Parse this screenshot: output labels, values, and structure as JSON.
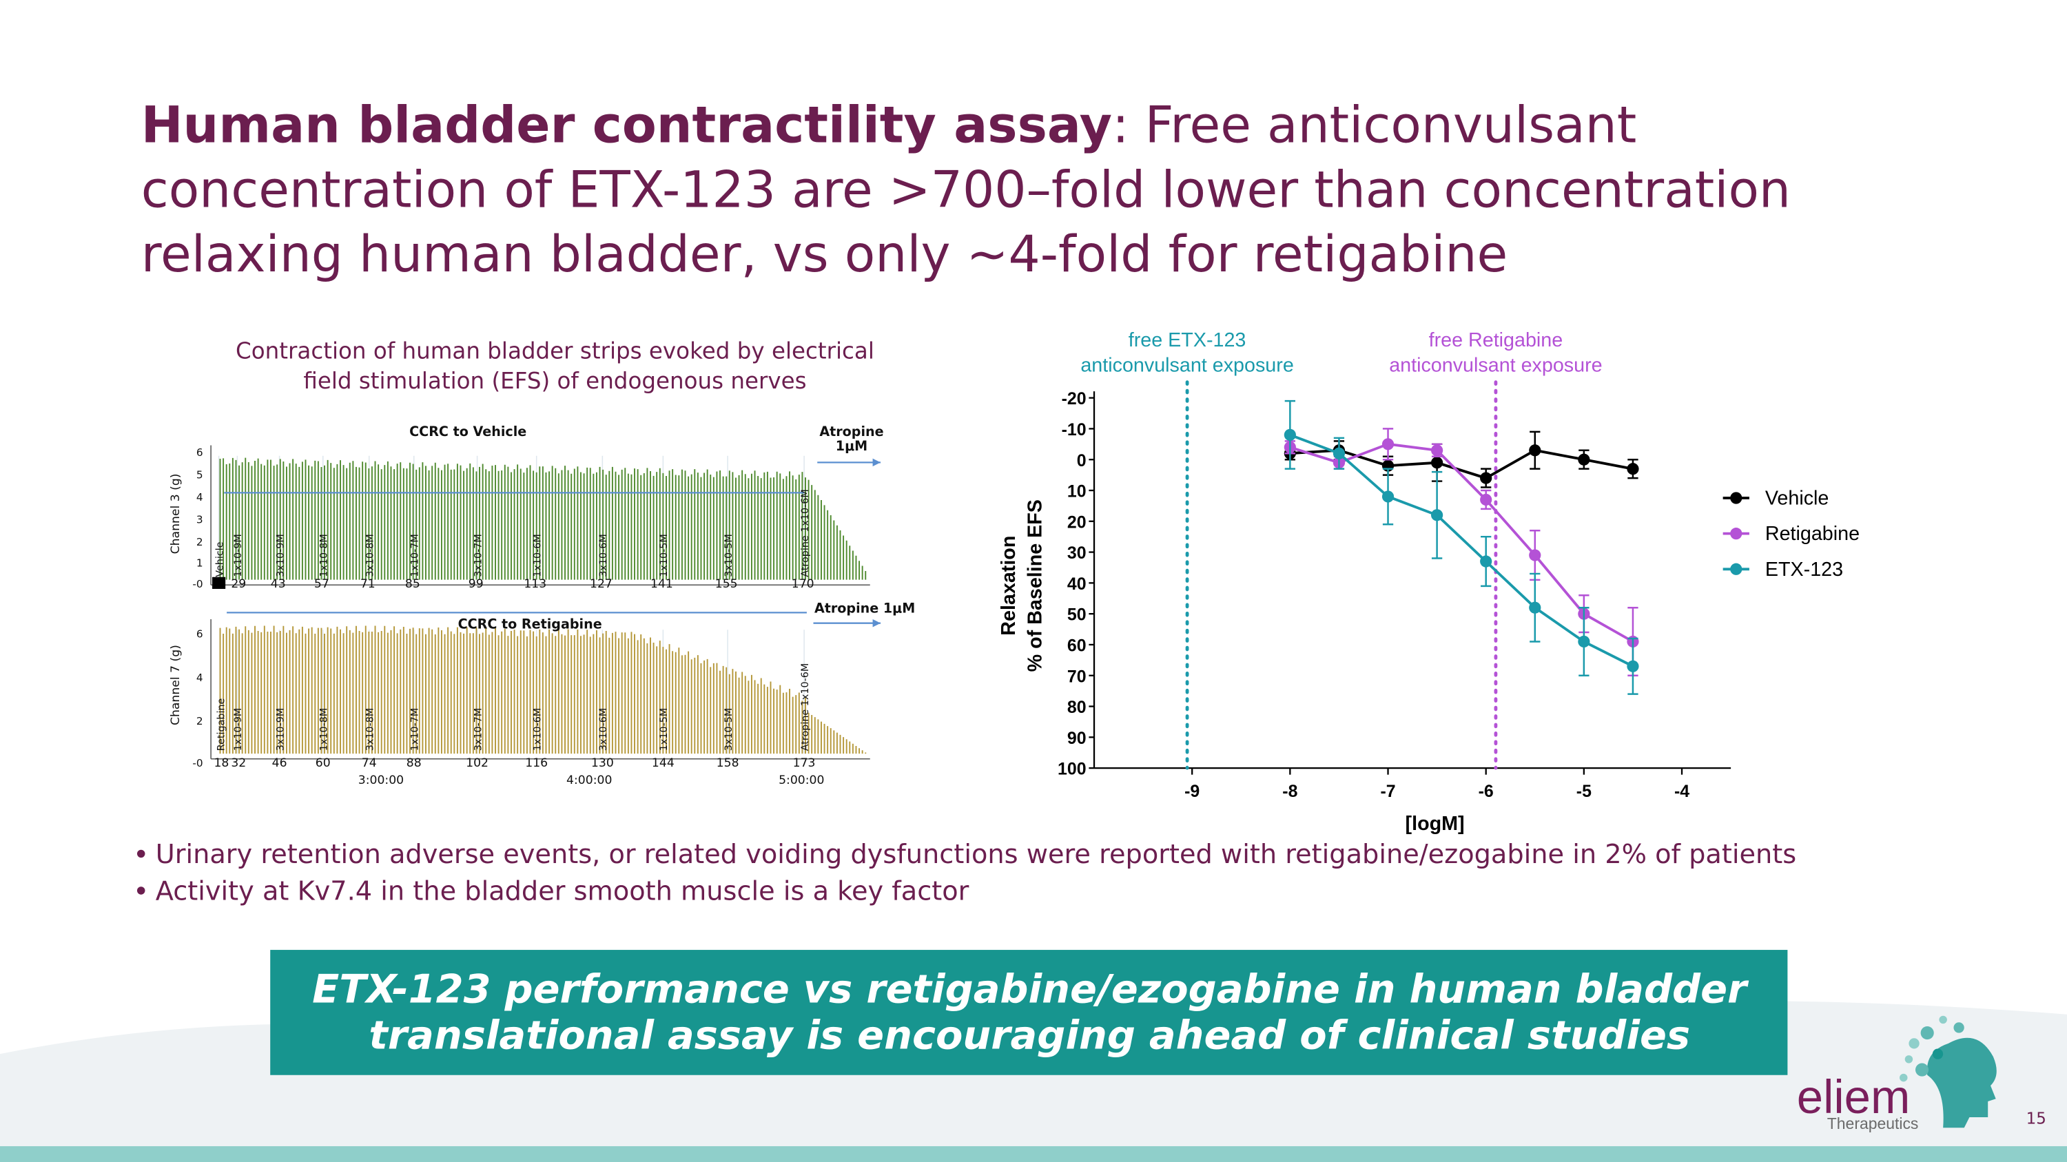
{
  "slide": {
    "title": {
      "bold": "Human bladder contractility assay",
      "rest": [
        ": Free anticonvulsant",
        "concentration of ETX-123 are >700–fold lower than concentration",
        "relaxing human bladder, vs only ~4-fold for retigabine"
      ]
    },
    "bullets": [
      "Urinary retention adverse events, or related voiding dysfunctions were reported with retigabine/ezogabine in 2% of patients",
      "Activity at Kv7.4 in the bladder smooth muscle is a key factor"
    ],
    "banner": [
      "ETX-123 performance vs retigabine/ezogabine in human bladder",
      "translational assay is encouraging ahead of clinical studies"
    ],
    "logo": {
      "name": "eliem",
      "tagline": "Therapeutics"
    },
    "page_number": "15"
  },
  "traces": {
    "caption": [
      "Contraction of human bladder strips evoked by electrical",
      "field stimulation (EFS) of endogenous nerves"
    ],
    "panels": [
      {
        "title": "CCRC to Vehicle",
        "end_label": [
          "Atropine",
          "1μM"
        ],
        "y_label": "Channel 3 (g)",
        "yticks": [
          "6",
          "5",
          "4",
          "3",
          "2",
          "1",
          "-0"
        ],
        "sweeps": [
          "29",
          "43",
          "57",
          "71",
          "85",
          "99",
          "113",
          "127",
          "141",
          "155",
          "170"
        ],
        "doses": [
          "Vehicle",
          "1x10-9M",
          "3x10-9M",
          "1x10-8M",
          "3x10-8M",
          "1x10-7M",
          "3x10-7M",
          "1x10-6M",
          "3x10-6M",
          "1x10-5M",
          "3x10-5M",
          "Atropine 1x10-6M"
        ]
      },
      {
        "title": "CCRC to Retigabine",
        "end_label": [
          "Atropine 1μM"
        ],
        "y_label": "Channel 7 (g)",
        "yticks": [
          "6",
          "4",
          "2",
          "-0"
        ],
        "sweeps": [
          "18",
          "32",
          "46",
          "60",
          "74",
          "88",
          "102",
          "116",
          "130",
          "144",
          "158",
          "173"
        ],
        "doses": [
          "Retigabine",
          "1x10-9M",
          "3x10-9M",
          "1x10-8M",
          "3x10-8M",
          "1x10-7M",
          "3x10-7M",
          "1x10-6M",
          "3x10-6M",
          "1x10-5M",
          "3x10-5M",
          "Atropine 1x10-6M"
        ]
      }
    ],
    "time_labels": [
      "3:00:00",
      "4:00:00",
      "5:00:00"
    ]
  },
  "chart_data": {
    "type": "line",
    "x_label": "[logM]",
    "y_label": [
      "Relaxation",
      "% of Baseline EFS"
    ],
    "xlim": [
      -10,
      -3.5
    ],
    "xticks": [
      -9,
      -8,
      -7,
      -6,
      -5,
      -4
    ],
    "ylim": [
      100,
      -20
    ],
    "yticks": [
      -20,
      -10,
      0,
      10,
      20,
      30,
      40,
      50,
      60,
      70,
      80,
      90,
      100
    ],
    "legend": "right",
    "x": [
      -8,
      -7.5,
      -7,
      -6.5,
      -6,
      -5.5,
      -5,
      -4.5
    ],
    "series": [
      {
        "name": "Vehicle",
        "color": "#000000",
        "values": [
          -2,
          -3,
          2,
          1,
          6,
          -3,
          0,
          3
        ],
        "errors": [
          2,
          3,
          3,
          6,
          3,
          6,
          3,
          3
        ]
      },
      {
        "name": "Retigabine",
        "color": "#b452d6",
        "values": [
          -4,
          1,
          -5,
          -3,
          13,
          31,
          50,
          59
        ],
        "errors": [
          2,
          2,
          5,
          2,
          3,
          8,
          6,
          11
        ]
      },
      {
        "name": "ETX-123",
        "color": "#1a9aab",
        "values": [
          -8,
          -2,
          12,
          18,
          33,
          48,
          59,
          67
        ],
        "errors": [
          11,
          5,
          9,
          14,
          8,
          11,
          11,
          9
        ]
      }
    ],
    "annotations": [
      {
        "x": -9.05,
        "color": "#1a9aab",
        "text": [
          "free ETX-123",
          "anticonvulsant exposure"
        ]
      },
      {
        "x": -5.9,
        "color": "#b452d6",
        "text": [
          "free Retigabine",
          "anticonvulsant exposure"
        ]
      }
    ]
  }
}
